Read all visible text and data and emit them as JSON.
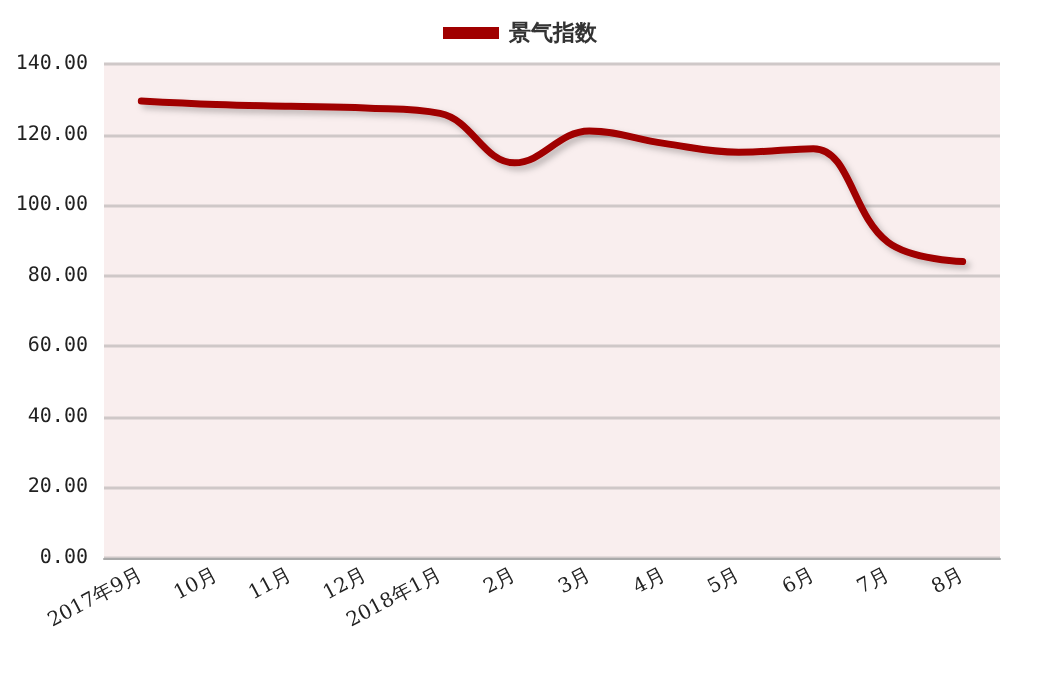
{
  "chart_data": {
    "type": "line",
    "categories": [
      "2017年9月",
      "10月",
      "11月",
      "12月",
      "2018年1月",
      "2月",
      "3月",
      "4月",
      "5月",
      "6月",
      "7月",
      "8月"
    ],
    "series": [
      {
        "name": "景气指数",
        "color": "#a00000",
        "values": [
          129.5,
          128.5,
          128,
          127.5,
          126,
          112,
          121,
          117.5,
          115,
          116,
          89.5,
          84
        ]
      }
    ],
    "ylim": [
      0,
      140
    ],
    "yticks": [
      {
        "value": 0,
        "label": "0.00"
      },
      {
        "value": 20,
        "label": "20.00"
      },
      {
        "value": 40,
        "label": "40.00"
      },
      {
        "value": 60,
        "label": "60.00"
      },
      {
        "value": 80,
        "label": "80.00"
      },
      {
        "value": 100,
        "label": "100.00"
      },
      {
        "value": 120,
        "label": "120.00"
      },
      {
        "value": 140,
        "label": "140.00"
      }
    ],
    "grid": "y",
    "legend": "top",
    "marker": "none",
    "line_style": "solid"
  }
}
